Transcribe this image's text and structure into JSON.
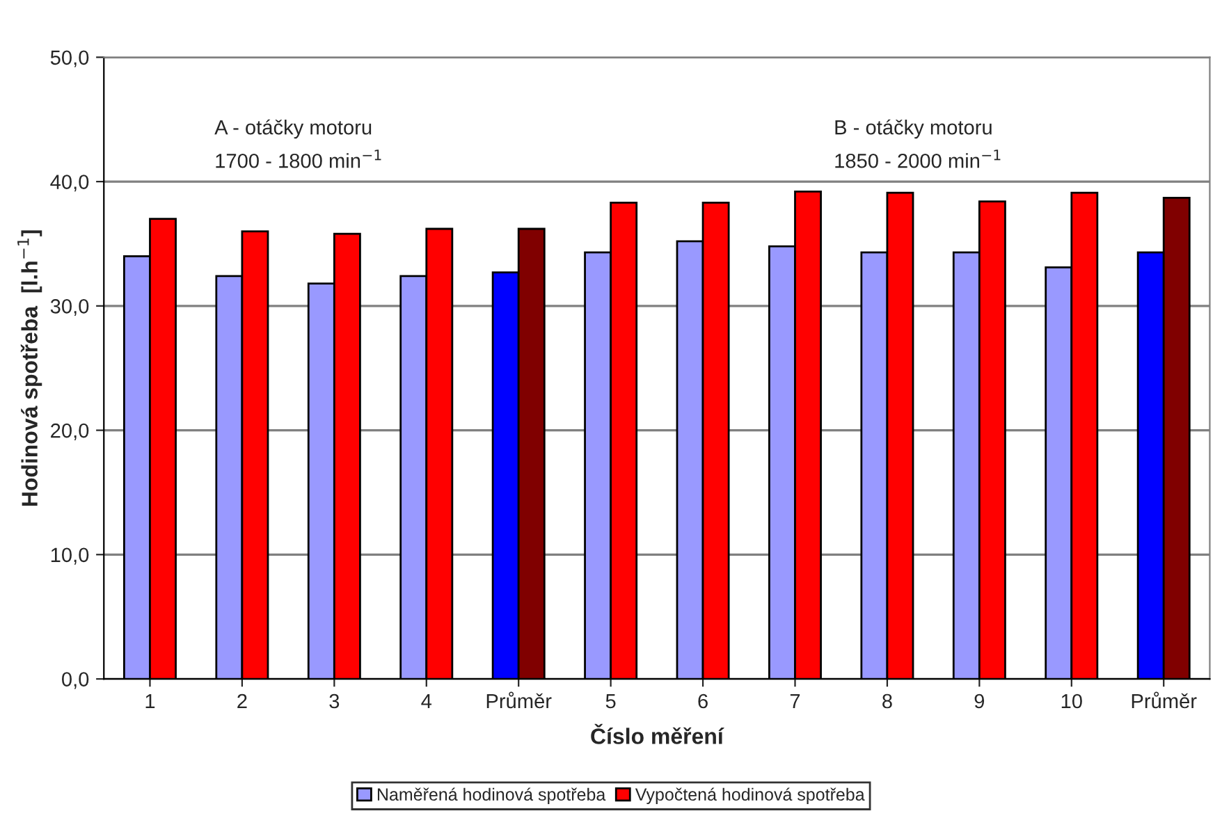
{
  "chart_data": {
    "type": "bar",
    "xlabel": "Číslo měření",
    "ylabel": "Hodinová spotřeba  [l.h$^{−1}$]",
    "categories": [
      "1",
      "2",
      "3",
      "4",
      "Průměr",
      "5",
      "6",
      "7",
      "8",
      "9",
      "10",
      "Průměr"
    ],
    "series": [
      {
        "name": "Naměřená hodinová spotřeba",
        "color": "#9999ff",
        "colors": [
          "#9999ff",
          "#9999ff",
          "#9999ff",
          "#9999ff",
          "#0000ff",
          "#9999ff",
          "#9999ff",
          "#9999ff",
          "#9999ff",
          "#9999ff",
          "#9999ff",
          "#0000ff"
        ],
        "values": [
          34.0,
          32.4,
          31.8,
          32.4,
          32.7,
          34.3,
          35.2,
          34.8,
          34.3,
          34.3,
          33.1,
          34.3
        ]
      },
      {
        "name": "Vypočtená hodinová spotřeba",
        "color": "#ff0000",
        "colors": [
          "#ff0000",
          "#ff0000",
          "#ff0000",
          "#ff0000",
          "#800000",
          "#ff0000",
          "#ff0000",
          "#ff0000",
          "#ff0000",
          "#ff0000",
          "#ff0000",
          "#800000"
        ],
        "values": [
          37.0,
          36.0,
          35.8,
          36.2,
          36.2,
          38.3,
          38.3,
          39.2,
          39.1,
          38.4,
          39.1,
          38.7
        ]
      }
    ],
    "ylim": [
      0,
      50
    ],
    "yticks": [
      {
        "value": 0,
        "label": "0,0"
      },
      {
        "value": 10,
        "label": "10,0"
      },
      {
        "value": 20,
        "label": "20,0"
      },
      {
        "value": 30,
        "label": "30,0"
      },
      {
        "value": 40,
        "label": "40,0"
      },
      {
        "value": 50,
        "label": "50,0"
      }
    ],
    "grid": "y",
    "legend": "bottom",
    "annotations": [
      "A - otáčky motoru\n1700 - 1800 min$^{−1}$",
      "B - otáčky motoru\n1850 - 2000 min$^{−1}$"
    ]
  }
}
